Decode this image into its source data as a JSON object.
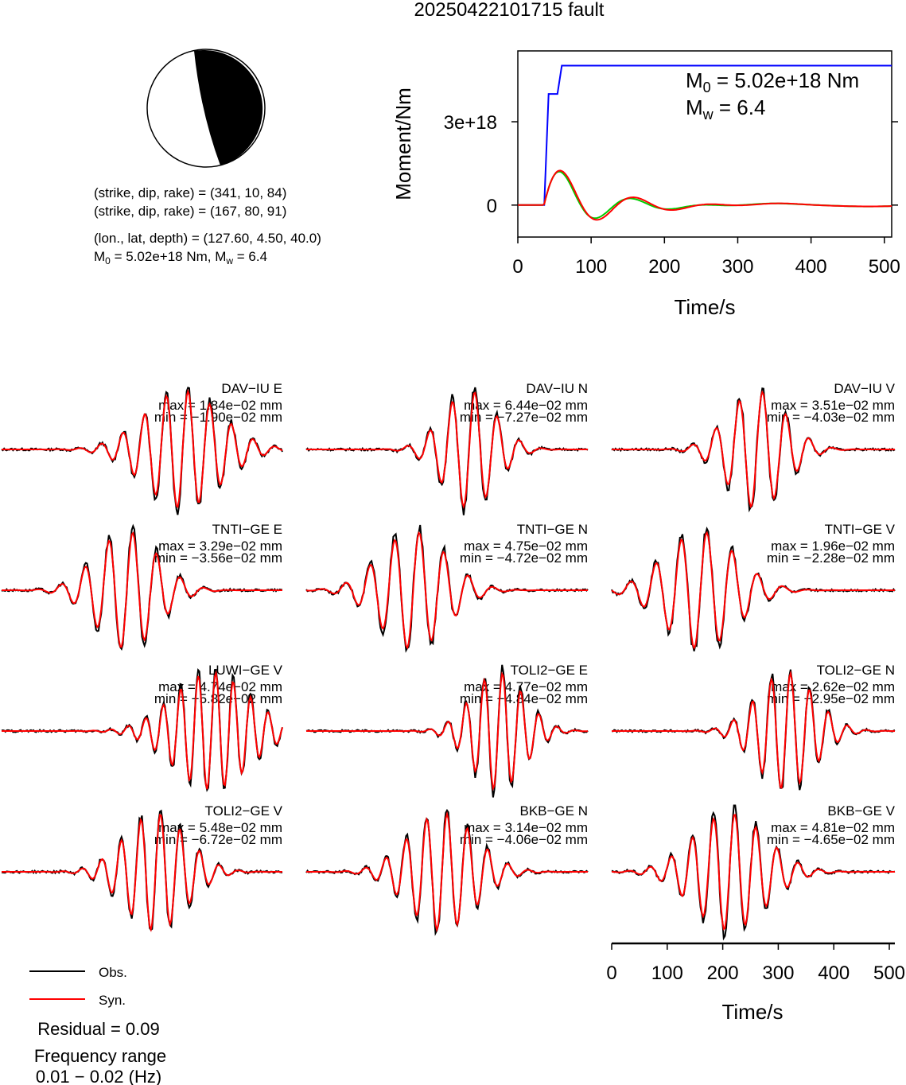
{
  "title": "20250422101715 fault",
  "focal": {
    "np1": "(strike, dip, rake) = (341, 10, 84)",
    "np2": "(strike, dip, rake) = (167, 80, 91)",
    "loc": "(lon., lat, depth) = (127.60, 4.50, 40.0)",
    "m0_prefix": "M",
    "m0_sub": "0",
    "m0_text": " = 5.02e+18 Nm, M",
    "mw_sub": "w",
    "mw_text": " = 6.4"
  },
  "moment_chart": {
    "ylabel": "Moment/Nm",
    "xlabel": "Time/s",
    "m0_prefix": "M",
    "m0_sub": "0",
    "m0_text": " = 5.02e+18 Nm",
    "mw_prefix": "M",
    "mw_sub": "w",
    "mw_text": " = 6.4",
    "yticks": [
      "0",
      "3e+18"
    ],
    "xticks": [
      "0",
      "100",
      "200",
      "300",
      "400",
      "500"
    ]
  },
  "chart_data": [
    {
      "type": "line",
      "title": "",
      "xlabel": "Time/s",
      "ylabel": "Moment/Nm",
      "xlim": [
        0,
        510
      ],
      "series": [
        {
          "name": "",
          "color": "#0000ff",
          "x": [
            0,
            36,
            42,
            48,
            54,
            60,
            66,
            510
          ],
          "y": [
            0,
            0,
            4e+18,
            4e+18,
            4e+18,
            5.02e+18,
            5.02e+18,
            5.02e+18
          ]
        }
      ]
    },
    {
      "type": "line",
      "title": "",
      "xlabel": "Time/s",
      "ylabel": "",
      "xlim": [
        0,
        510
      ],
      "legend": "bottom-left",
      "stations": [
        {
          "label": "DAV−IU E",
          "max": "max = 1.84e−02 mm",
          "min": "min = −1.90e−02 mm"
        },
        {
          "label": "DAV−IU N",
          "max": "max = 6.44e−02 mm",
          "min": "min = −7.27e−02 mm"
        },
        {
          "label": "DAV−IU V",
          "max": "max = 3.51e−02 mm",
          "min": "min = −4.03e−02 mm"
        },
        {
          "label": "TNTI−GE E",
          "max": "max = 3.29e−02 mm",
          "min": "min = −3.56e−02 mm"
        },
        {
          "label": "TNTI−GE N",
          "max": "max = 4.75e−02 mm",
          "min": "min = −4.72e−02 mm"
        },
        {
          "label": "TNTI−GE V",
          "max": "max = 1.96e−02 mm",
          "min": "min = −2.28e−02 mm"
        },
        {
          "label": "LUWI−GE V",
          "max": "max = 4.74e−02 mm",
          "min": "min = −5.82e−02 mm"
        },
        {
          "label": "TOLI2−GE E",
          "max": "max = 4.77e−02 mm",
          "min": "min = −4.84e−02 mm"
        },
        {
          "label": "TOLI2−GE N",
          "max": "max = 2.62e−02 mm",
          "min": "min = −2.95e−02 mm"
        },
        {
          "label": "TOLI2−GE V",
          "max": "max = 5.48e−02 mm",
          "min": "min = −6.72e−02 mm"
        },
        {
          "label": "BKB−GE N",
          "max": "max = 3.14e−02 mm",
          "min": "min = −4.06e−02 mm"
        },
        {
          "label": "BKB−GE V",
          "max": "max = 4.81e−02 mm",
          "min": "min = −4.65e−02 mm"
        }
      ],
      "series": [
        {
          "name": "Obs.",
          "color": "#000000"
        },
        {
          "name": "Syn.",
          "color": "#ff0000"
        }
      ]
    }
  ],
  "legend": {
    "obs": "Obs.",
    "syn": "Syn."
  },
  "residual": "Residual = 0.09",
  "freq_label": "Frequency range",
  "freq_range": "0.01 − 0.02 (Hz)",
  "time_axis": {
    "xlabel": "Time/s",
    "ticks": [
      "0",
      "100",
      "200",
      "300",
      "400",
      "500"
    ]
  },
  "colors": {
    "obs": "#000000",
    "syn": "#ff0000",
    "moment": "#0000ff",
    "stf_green": "#00cc00"
  }
}
